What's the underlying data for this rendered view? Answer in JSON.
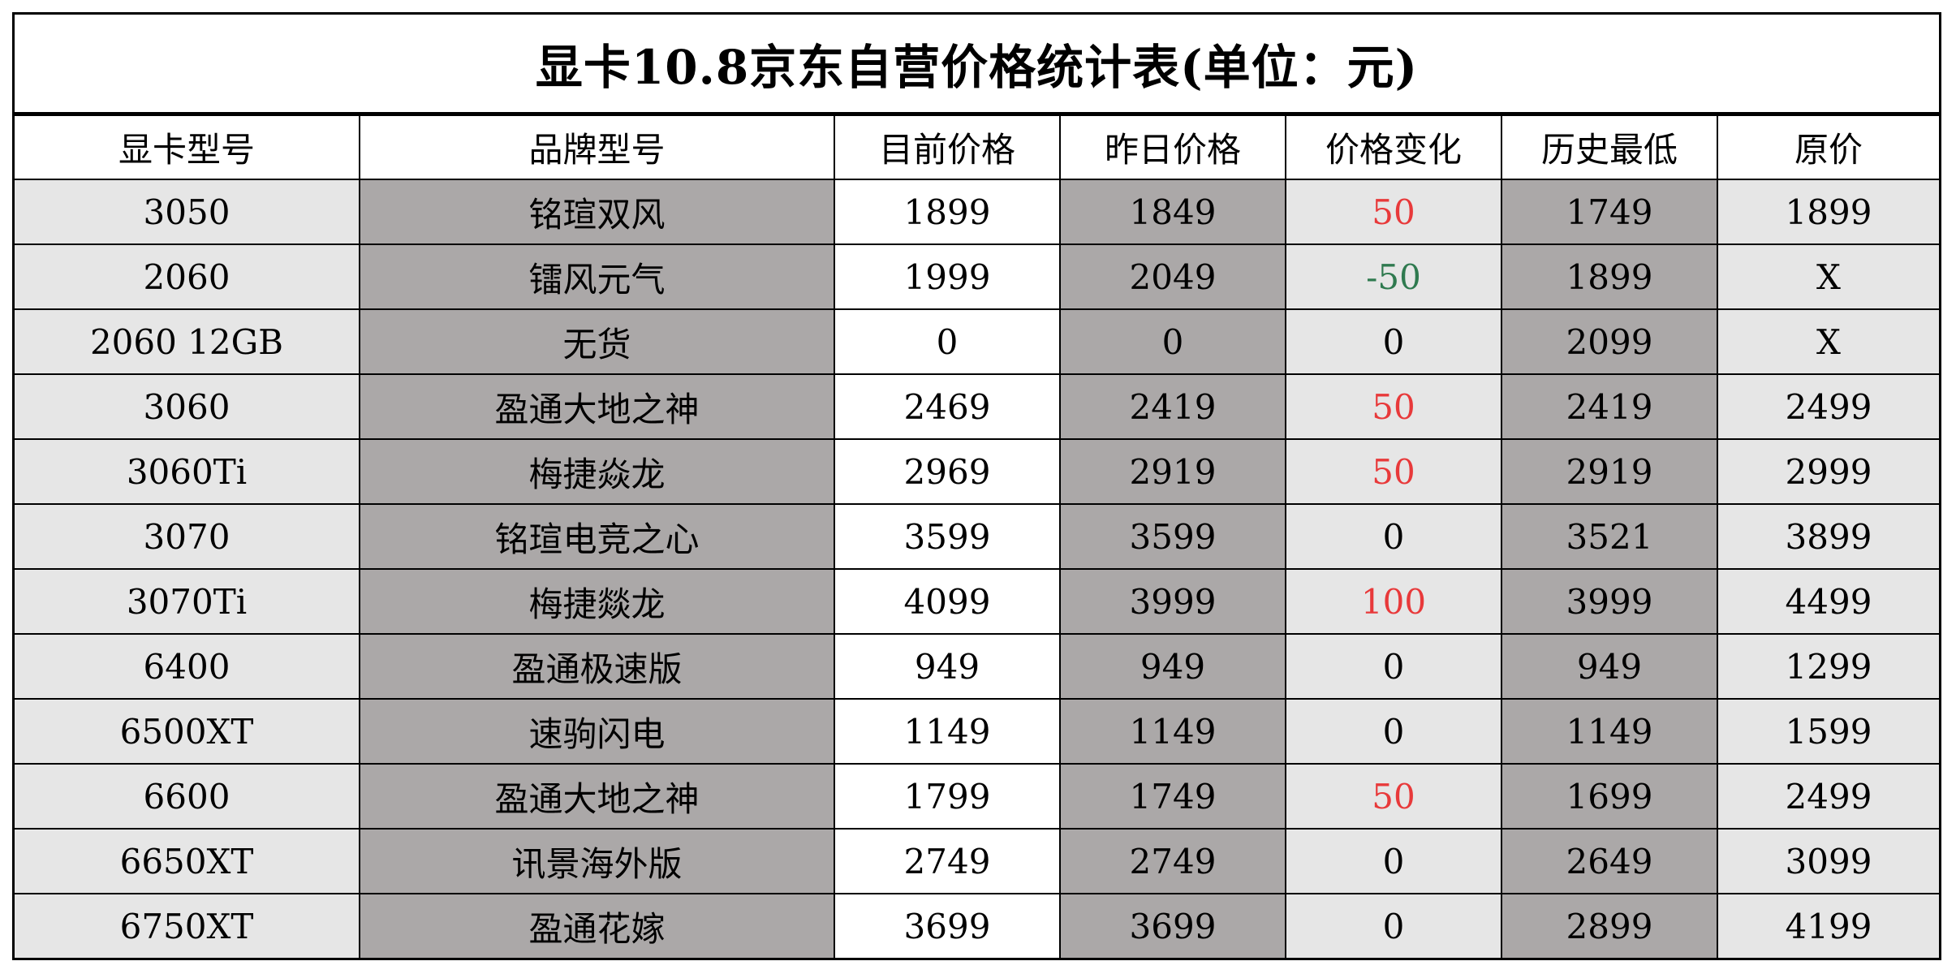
{
  "title": "显卡10.8京东自营价格统计表(单位：元)",
  "headers": [
    "显卡型号",
    "品牌型号",
    "目前价格",
    "昨日价格",
    "价格变化",
    "历史最低",
    "原价"
  ],
  "colors": {
    "price_up": "#e8393a",
    "price_down": "#2f7a4f",
    "price_unchanged": "#000000",
    "shade_light": "#e6e6e6",
    "shade_dark": "#aba8a8"
  },
  "rows": [
    {
      "model": "3050",
      "brand": "铭瑄双风",
      "current": "1899",
      "yesterday": "1849",
      "change": "50",
      "lowest": "1749",
      "original": "1899"
    },
    {
      "model": "2060",
      "brand": "镭风元气",
      "current": "1999",
      "yesterday": "2049",
      "change": "-50",
      "lowest": "1899",
      "original": "X"
    },
    {
      "model": "2060 12GB",
      "brand": "无货",
      "current": "0",
      "yesterday": "0",
      "change": "0",
      "lowest": "2099",
      "original": "X"
    },
    {
      "model": "3060",
      "brand": "盈通大地之神",
      "current": "2469",
      "yesterday": "2419",
      "change": "50",
      "lowest": "2419",
      "original": "2499"
    },
    {
      "model": "3060Ti",
      "brand": "梅捷焱龙",
      "current": "2969",
      "yesterday": "2919",
      "change": "50",
      "lowest": "2919",
      "original": "2999"
    },
    {
      "model": "3070",
      "brand": "铭瑄电竞之心",
      "current": "3599",
      "yesterday": "3599",
      "change": "0",
      "lowest": "3521",
      "original": "3899"
    },
    {
      "model": "3070Ti",
      "brand": "梅捷燚龙",
      "current": "4099",
      "yesterday": "3999",
      "change": "100",
      "lowest": "3999",
      "original": "4499"
    },
    {
      "model": "6400",
      "brand": "盈通极速版",
      "current": "949",
      "yesterday": "949",
      "change": "0",
      "lowest": "949",
      "original": "1299"
    },
    {
      "model": "6500XT",
      "brand": "速驹闪电",
      "current": "1149",
      "yesterday": "1149",
      "change": "0",
      "lowest": "1149",
      "original": "1599"
    },
    {
      "model": "6600",
      "brand": "盈通大地之神",
      "current": "1799",
      "yesterday": "1749",
      "change": "50",
      "lowest": "1699",
      "original": "2499"
    },
    {
      "model": "6650XT",
      "brand": "讯景海外版",
      "current": "2749",
      "yesterday": "2749",
      "change": "0",
      "lowest": "2649",
      "original": "3099"
    },
    {
      "model": "6750XT",
      "brand": "盈通花嫁",
      "current": "3699",
      "yesterday": "3699",
      "change": "0",
      "lowest": "2899",
      "original": "4199"
    }
  ]
}
